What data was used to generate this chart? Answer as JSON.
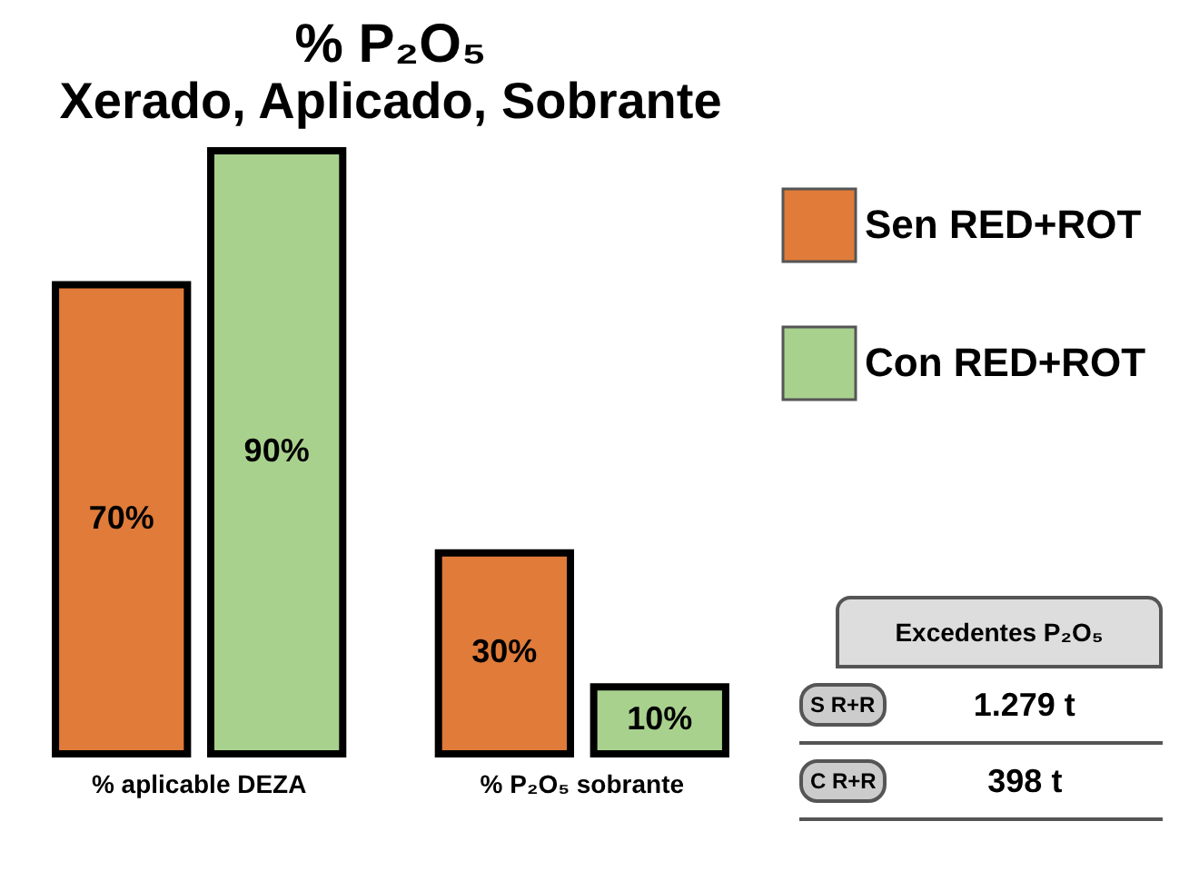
{
  "chart_data": {
    "type": "bar",
    "title": "% P₂O₅",
    "subtitle": "Xerado, Aplicado, Sobrante",
    "categories": [
      "% aplicable DEZA",
      "% P₂O₅ sobrante"
    ],
    "series": [
      {
        "name": "Sen RED+ROT",
        "color": "#e07b39",
        "values": [
          70,
          30
        ],
        "value_labels": [
          "70%",
          "30%"
        ]
      },
      {
        "name": "Con RED+ROT",
        "color": "#a9d18e",
        "values": [
          90,
          10
        ],
        "value_labels": [
          "90%",
          "10%"
        ]
      }
    ],
    "legend": "right",
    "annotations": [
      "Excedentes P₂O₅",
      "S R+R",
      "1.279 t",
      "C R+R",
      "398 t"
    ]
  }
}
